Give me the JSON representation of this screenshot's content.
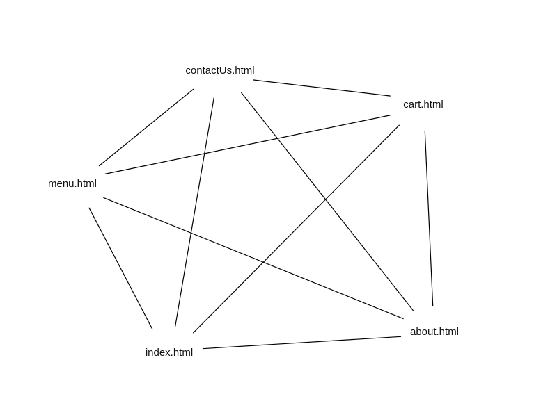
{
  "diagram": {
    "colors": {
      "background": "#ffffff",
      "edge": "#000000",
      "label": "#111111"
    },
    "nodes": [
      {
        "id": "contactUs",
        "label": "contactUs.html"
      },
      {
        "id": "cart",
        "label": "cart.html"
      },
      {
        "id": "menu",
        "label": "menu.html"
      },
      {
        "id": "about",
        "label": "about.html"
      },
      {
        "id": "index",
        "label": "index.html"
      }
    ],
    "edges": [
      {
        "from": "contactUs",
        "to": "cart"
      },
      {
        "from": "contactUs",
        "to": "menu"
      },
      {
        "from": "contactUs",
        "to": "index"
      },
      {
        "from": "contactUs",
        "to": "about"
      },
      {
        "from": "cart",
        "to": "menu"
      },
      {
        "from": "cart",
        "to": "index"
      },
      {
        "from": "cart",
        "to": "about"
      },
      {
        "from": "menu",
        "to": "about"
      },
      {
        "from": "menu",
        "to": "index"
      },
      {
        "from": "index",
        "to": "about"
      }
    ]
  }
}
